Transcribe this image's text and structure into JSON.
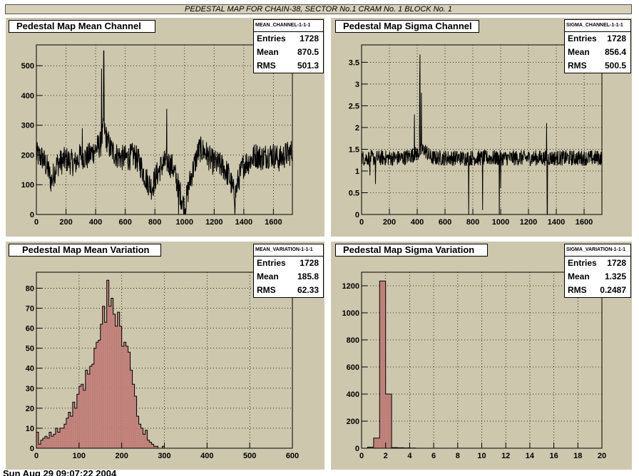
{
  "header": {
    "title": "PEDESTAL MAP FOR CHAIN-38, SECTOR No.1 CRAM No. 1 BLOCK No. 1"
  },
  "footer": {
    "text": "Sun Aug 29 09:07:22 2004"
  },
  "panels": [
    {
      "title": "Pedestal Map Mean Channel",
      "stats": {
        "name": "MEAN_CHANNEL-1-1-1",
        "rows": [
          {
            "key": "Entries",
            "value": "1728"
          },
          {
            "key": "Mean",
            "value": "870.5"
          },
          {
            "key": "RMS",
            "value": "501.3"
          }
        ]
      }
    },
    {
      "title": "Pedestal Map Sigma Channel",
      "stats": {
        "name": "SIGMA_CHANNEL-1-1-1",
        "rows": [
          {
            "key": "Entries",
            "value": "1728"
          },
          {
            "key": "Mean",
            "value": "856.4"
          },
          {
            "key": "RMS",
            "value": "500.5"
          }
        ]
      }
    },
    {
      "title": "Pedestal Map Mean Variation",
      "stats": {
        "name": "MEAN_VARIATION-1-1-1",
        "rows": [
          {
            "key": "Entries",
            "value": "1728"
          },
          {
            "key": "Mean",
            "value": "185.8"
          },
          {
            "key": "RMS",
            "value": "62.33"
          }
        ]
      }
    },
    {
      "title": "Pedestal Map Sigma Variation",
      "stats": {
        "name": "SIGMA_VARIATION-1-1-1",
        "rows": [
          {
            "key": "Entries",
            "value": "1728"
          },
          {
            "key": "Mean",
            "value": "1.325"
          },
          {
            "key": "RMS",
            "value": "0.2487"
          }
        ]
      }
    }
  ],
  "chart_data": [
    {
      "type": "line",
      "title": "Pedestal Map Mean Channel",
      "grid": true,
      "legend": "top-right",
      "xlim": [
        0,
        1728
      ],
      "ylim": [
        0,
        570
      ],
      "xticks": [
        0,
        200,
        400,
        600,
        800,
        1000,
        1200,
        1400,
        1600
      ],
      "yticks": [
        0,
        100,
        200,
        300,
        400,
        500
      ],
      "profile": [
        [
          0,
          200
        ],
        [
          40,
          190
        ],
        [
          80,
          150
        ],
        [
          100,
          110
        ],
        [
          140,
          170
        ],
        [
          200,
          185
        ],
        [
          260,
          170
        ],
        [
          300,
          200
        ],
        [
          340,
          190
        ],
        [
          380,
          210
        ],
        [
          420,
          230
        ],
        [
          440,
          240
        ],
        [
          455,
          300
        ],
        [
          470,
          260
        ],
        [
          500,
          220
        ],
        [
          540,
          200
        ],
        [
          580,
          190
        ],
        [
          620,
          190
        ],
        [
          660,
          200
        ],
        [
          700,
          170
        ],
        [
          740,
          120
        ],
        [
          780,
          90
        ],
        [
          800,
          120
        ],
        [
          840,
          160
        ],
        [
          880,
          180
        ],
        [
          920,
          160
        ],
        [
          960,
          90
        ],
        [
          1000,
          20
        ],
        [
          1040,
          120
        ],
        [
          1080,
          190
        ],
        [
          1100,
          220
        ],
        [
          1140,
          210
        ],
        [
          1180,
          180
        ],
        [
          1220,
          170
        ],
        [
          1260,
          160
        ],
        [
          1300,
          130
        ],
        [
          1340,
          60
        ],
        [
          1360,
          110
        ],
        [
          1400,
          170
        ],
        [
          1440,
          180
        ],
        [
          1480,
          200
        ],
        [
          1520,
          190
        ],
        [
          1560,
          200
        ],
        [
          1600,
          200
        ],
        [
          1640,
          185
        ],
        [
          1680,
          200
        ],
        [
          1728,
          210
        ]
      ],
      "noise": 45,
      "spikes": [
        [
          455,
          550
        ],
        [
          440,
          490
        ],
        [
          310,
          290
        ],
        [
          880,
          355
        ],
        [
          960,
          0
        ],
        [
          1000,
          5
        ],
        [
          1340,
          0
        ]
      ]
    },
    {
      "type": "line",
      "title": "Pedestal Map Sigma Channel",
      "grid": true,
      "legend": "top-right",
      "xlim": [
        0,
        1728
      ],
      "ylim": [
        0,
        3.9
      ],
      "xticks": [
        0,
        200,
        400,
        600,
        800,
        1000,
        1200,
        1400,
        1600
      ],
      "yticks": [
        0,
        0.5,
        1,
        1.5,
        2,
        2.5,
        3,
        3.5
      ],
      "profile": [
        [
          0,
          1.3
        ],
        [
          300,
          1.3
        ],
        [
          400,
          1.4
        ],
        [
          450,
          1.5
        ],
        [
          500,
          1.3
        ],
        [
          1000,
          1.3
        ],
        [
          1500,
          1.3
        ],
        [
          1728,
          1.3
        ]
      ],
      "noise": 0.18,
      "spikes": [
        [
          420,
          3.68
        ],
        [
          418,
          3.2
        ],
        [
          430,
          2.8
        ],
        [
          380,
          2.3
        ],
        [
          1330,
          2.1
        ],
        [
          770,
          0.0
        ],
        [
          870,
          0.1
        ],
        [
          990,
          0.0
        ],
        [
          1000,
          0.6
        ],
        [
          1335,
          0.0
        ],
        [
          100,
          0.7
        ],
        [
          60,
          0.9
        ]
      ]
    },
    {
      "type": "bar",
      "title": "Pedestal Map Mean Variation",
      "grid": true,
      "legend": "top-right",
      "xlim": [
        0,
        600
      ],
      "ylim": [
        0,
        88
      ],
      "bin_width": 5,
      "xticks": [
        0,
        100,
        200,
        300,
        400,
        500,
        600
      ],
      "yticks": [
        0,
        10,
        20,
        30,
        40,
        50,
        60,
        70,
        80
      ],
      "values": [
        8,
        2,
        4,
        5,
        6,
        5,
        8,
        6,
        7,
        10,
        8,
        10,
        10,
        12,
        15,
        18,
        16,
        23,
        20,
        27,
        31,
        32,
        29,
        39,
        37,
        41,
        42,
        50,
        53,
        54,
        62,
        71,
        63,
        84,
        71,
        75,
        67,
        61,
        68,
        61,
        51,
        53,
        51,
        48,
        39,
        32,
        26,
        16,
        12,
        10,
        7,
        9,
        4,
        3,
        2,
        1,
        1,
        0,
        0,
        1,
        0,
        0,
        0,
        0,
        0,
        0,
        0,
        0,
        0,
        0,
        0,
        0,
        0,
        0,
        0,
        0,
        0,
        0,
        0,
        0,
        0,
        0,
        0,
        0,
        0,
        0,
        0,
        0,
        0,
        0,
        0,
        0,
        0,
        0,
        0,
        0,
        0,
        0,
        0,
        0,
        0,
        0,
        0,
        0,
        0,
        0,
        0,
        0,
        0,
        0,
        0,
        0,
        0,
        0,
        0,
        0,
        0,
        0,
        0,
        0
      ]
    },
    {
      "type": "bar",
      "title": "Pedestal Map Sigma Variation",
      "grid": true,
      "legend": "top-right",
      "xlim": [
        0,
        20
      ],
      "ylim": [
        0,
        1300
      ],
      "bin_width": 0.5,
      "xticks": [
        0,
        2,
        4,
        6,
        8,
        10,
        12,
        14,
        16,
        18,
        20
      ],
      "yticks": [
        0,
        200,
        400,
        600,
        800,
        1000,
        1200
      ],
      "values": [
        0,
        8,
        75,
        1235,
        400,
        5,
        3,
        2,
        1,
        0,
        0,
        0,
        0,
        0,
        0,
        0,
        0,
        0,
        0,
        0,
        0,
        0,
        0,
        0,
        0,
        0,
        0,
        0,
        0,
        0,
        0,
        0,
        0,
        0,
        0,
        0,
        0,
        0,
        0,
        0
      ]
    }
  ]
}
